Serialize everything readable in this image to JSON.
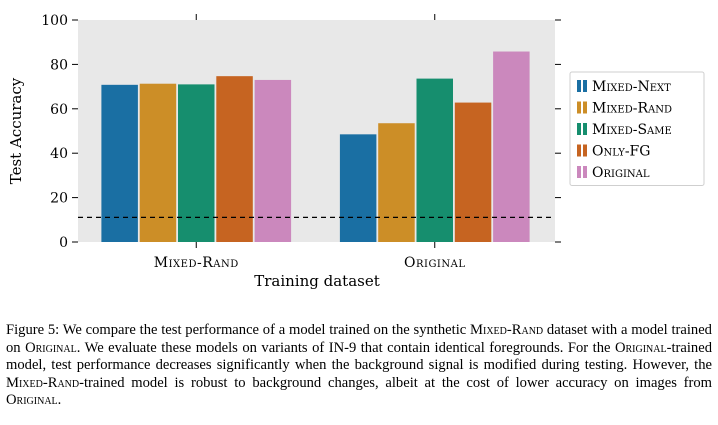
{
  "chart_data": {
    "type": "bar",
    "title": "",
    "xlabel": "Training dataset",
    "ylabel": "Test Accuracy",
    "categories": [
      "Mixed-Rand",
      "Original"
    ],
    "series": [
      {
        "name": "Mixed-Next",
        "color": "#1a6fa3",
        "values": [
          70.8,
          48.5
        ]
      },
      {
        "name": "Mixed-Rand",
        "color": "#cc8e27",
        "values": [
          71.3,
          53.5
        ]
      },
      {
        "name": "Mixed-Same",
        "color": "#168e6e",
        "values": [
          71.0,
          73.6
        ]
      },
      {
        "name": "Only-FG",
        "color": "#c66421",
        "values": [
          74.7,
          62.8
        ]
      },
      {
        "name": "Original",
        "color": "#cb88bd",
        "values": [
          73.0,
          85.8
        ]
      }
    ],
    "ylim": [
      0,
      100
    ],
    "yticks": [
      0,
      20,
      40,
      60,
      80,
      100
    ],
    "baseline": 11.1,
    "grid": false,
    "legend_position": "right"
  },
  "caption": {
    "figure_label": "Figure 5:",
    "text_1": " We compare the test performance of a model trained on the synthetic ",
    "sc_1": "Mixed-Rand",
    "text_2": " dataset with a model trained on ",
    "sc_2": "Original",
    "text_3": ". We evaluate these models on variants of IN-9 that contain identical foregrounds. For the ",
    "sc_3": "Original",
    "text_4": "-trained model, test performance decreases significantly when the background signal is modified during testing. However, the ",
    "sc_4": "Mixed-Rand",
    "text_5": "-trained model is robust to background changes, albeit at the cost of lower accuracy on images from ",
    "sc_5": "Original",
    "text_6": "."
  }
}
